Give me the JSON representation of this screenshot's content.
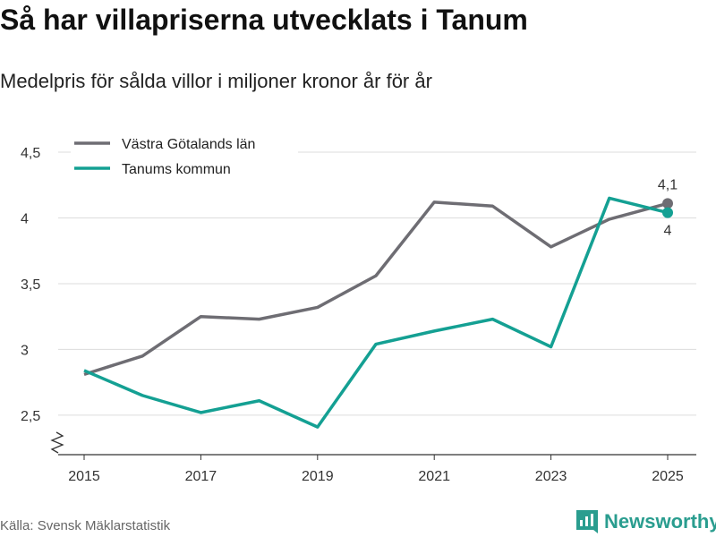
{
  "title": "Så har villapriserna utvecklats i Tanum",
  "subtitle": "Medelpris för sålda villor i miljoner kronor år för år",
  "source": "Källa: Svensk Mäklarstatistik",
  "brand": {
    "name": "Newsworthy",
    "icon": "bar-chart-logo-icon",
    "color": "#2a9d8f"
  },
  "chart_data": {
    "type": "line",
    "x": [
      2015,
      2016,
      2017,
      2018,
      2019,
      2020,
      2021,
      2022,
      2023,
      2024,
      2025
    ],
    "xticks": [
      "2015",
      "2017",
      "2019",
      "2021",
      "2023",
      "2025"
    ],
    "xlim": [
      2015,
      2025
    ],
    "yticks": [
      "2,5",
      "3",
      "3,5",
      "4",
      "4,5"
    ],
    "ylim": [
      2.2,
      4.5
    ],
    "grid": true,
    "axis_break": true,
    "legend_position": "top-left",
    "series": [
      {
        "name": "Västra Götalands län",
        "color": "#6e6d73",
        "values": [
          2.81,
          2.95,
          3.25,
          3.23,
          3.32,
          3.56,
          4.12,
          4.09,
          3.78,
          3.99,
          4.11
        ],
        "end_label": "4,1",
        "end_label_position": "above"
      },
      {
        "name": "Tanums kommun",
        "color": "#14a093",
        "values": [
          2.84,
          2.65,
          2.52,
          2.61,
          2.41,
          3.04,
          3.14,
          3.23,
          3.02,
          4.15,
          4.04
        ],
        "end_label": "4",
        "end_label_position": "below"
      }
    ]
  }
}
